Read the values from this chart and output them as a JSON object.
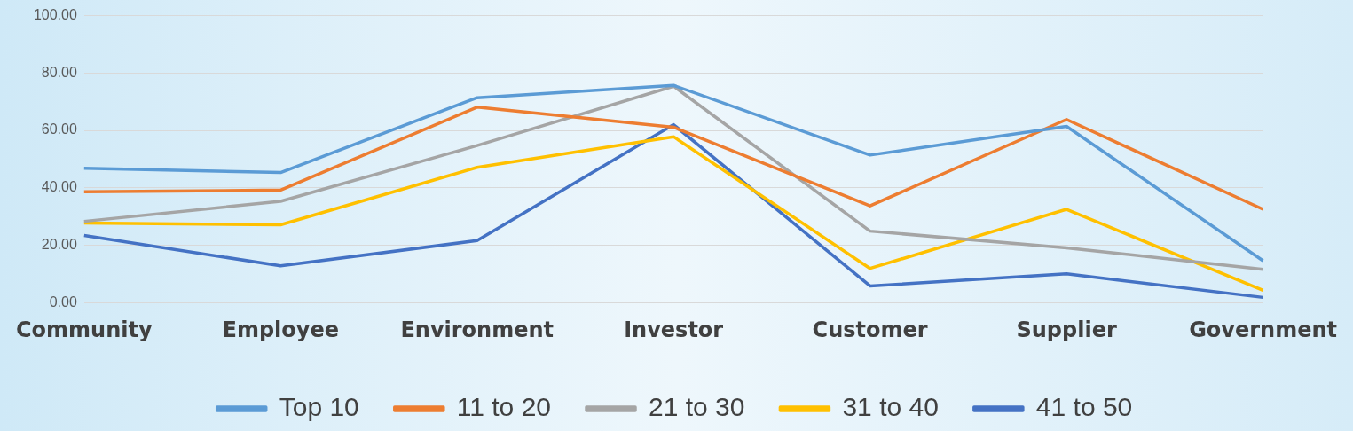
{
  "chart_data": {
    "type": "line",
    "categories": [
      "Community",
      "Employee",
      "Environment",
      "Investor",
      "Customer",
      "Supplier",
      "Government"
    ],
    "series": [
      {
        "name": "Top 10",
        "color": "#5b9bd5",
        "values": [
          46.8,
          45.3,
          71.4,
          75.7,
          51.4,
          61.4,
          14.6
        ]
      },
      {
        "name": "11 to 20",
        "color": "#ed7d31",
        "values": [
          38.6,
          39.2,
          68.1,
          61.1,
          33.7,
          63.8,
          32.5
        ]
      },
      {
        "name": "21 to 30",
        "color": "#a5a5a5",
        "values": [
          28.3,
          35.3,
          54.7,
          75.4,
          24.9,
          19.1,
          11.6
        ]
      },
      {
        "name": "31 to 40",
        "color": "#ffc000",
        "values": [
          27.7,
          27.1,
          47.1,
          57.8,
          11.9,
          32.5,
          4.3
        ]
      },
      {
        "name": "41 to 50",
        "color": "#4472c4",
        "values": [
          23.4,
          12.8,
          21.6,
          62.0,
          5.8,
          10.0,
          1.8
        ]
      }
    ],
    "ylim": [
      0,
      100
    ],
    "yticks": [
      {
        "value": 0,
        "label": "0.00"
      },
      {
        "value": 20,
        "label": "20.00"
      },
      {
        "value": 40,
        "label": "40.00"
      },
      {
        "value": 60,
        "label": "60.00"
      },
      {
        "value": 80,
        "label": "80.00"
      },
      {
        "value": 100,
        "label": "100.00"
      }
    ],
    "grid": "y",
    "legend": "bottom",
    "marker": "none",
    "line_style": "solid"
  }
}
